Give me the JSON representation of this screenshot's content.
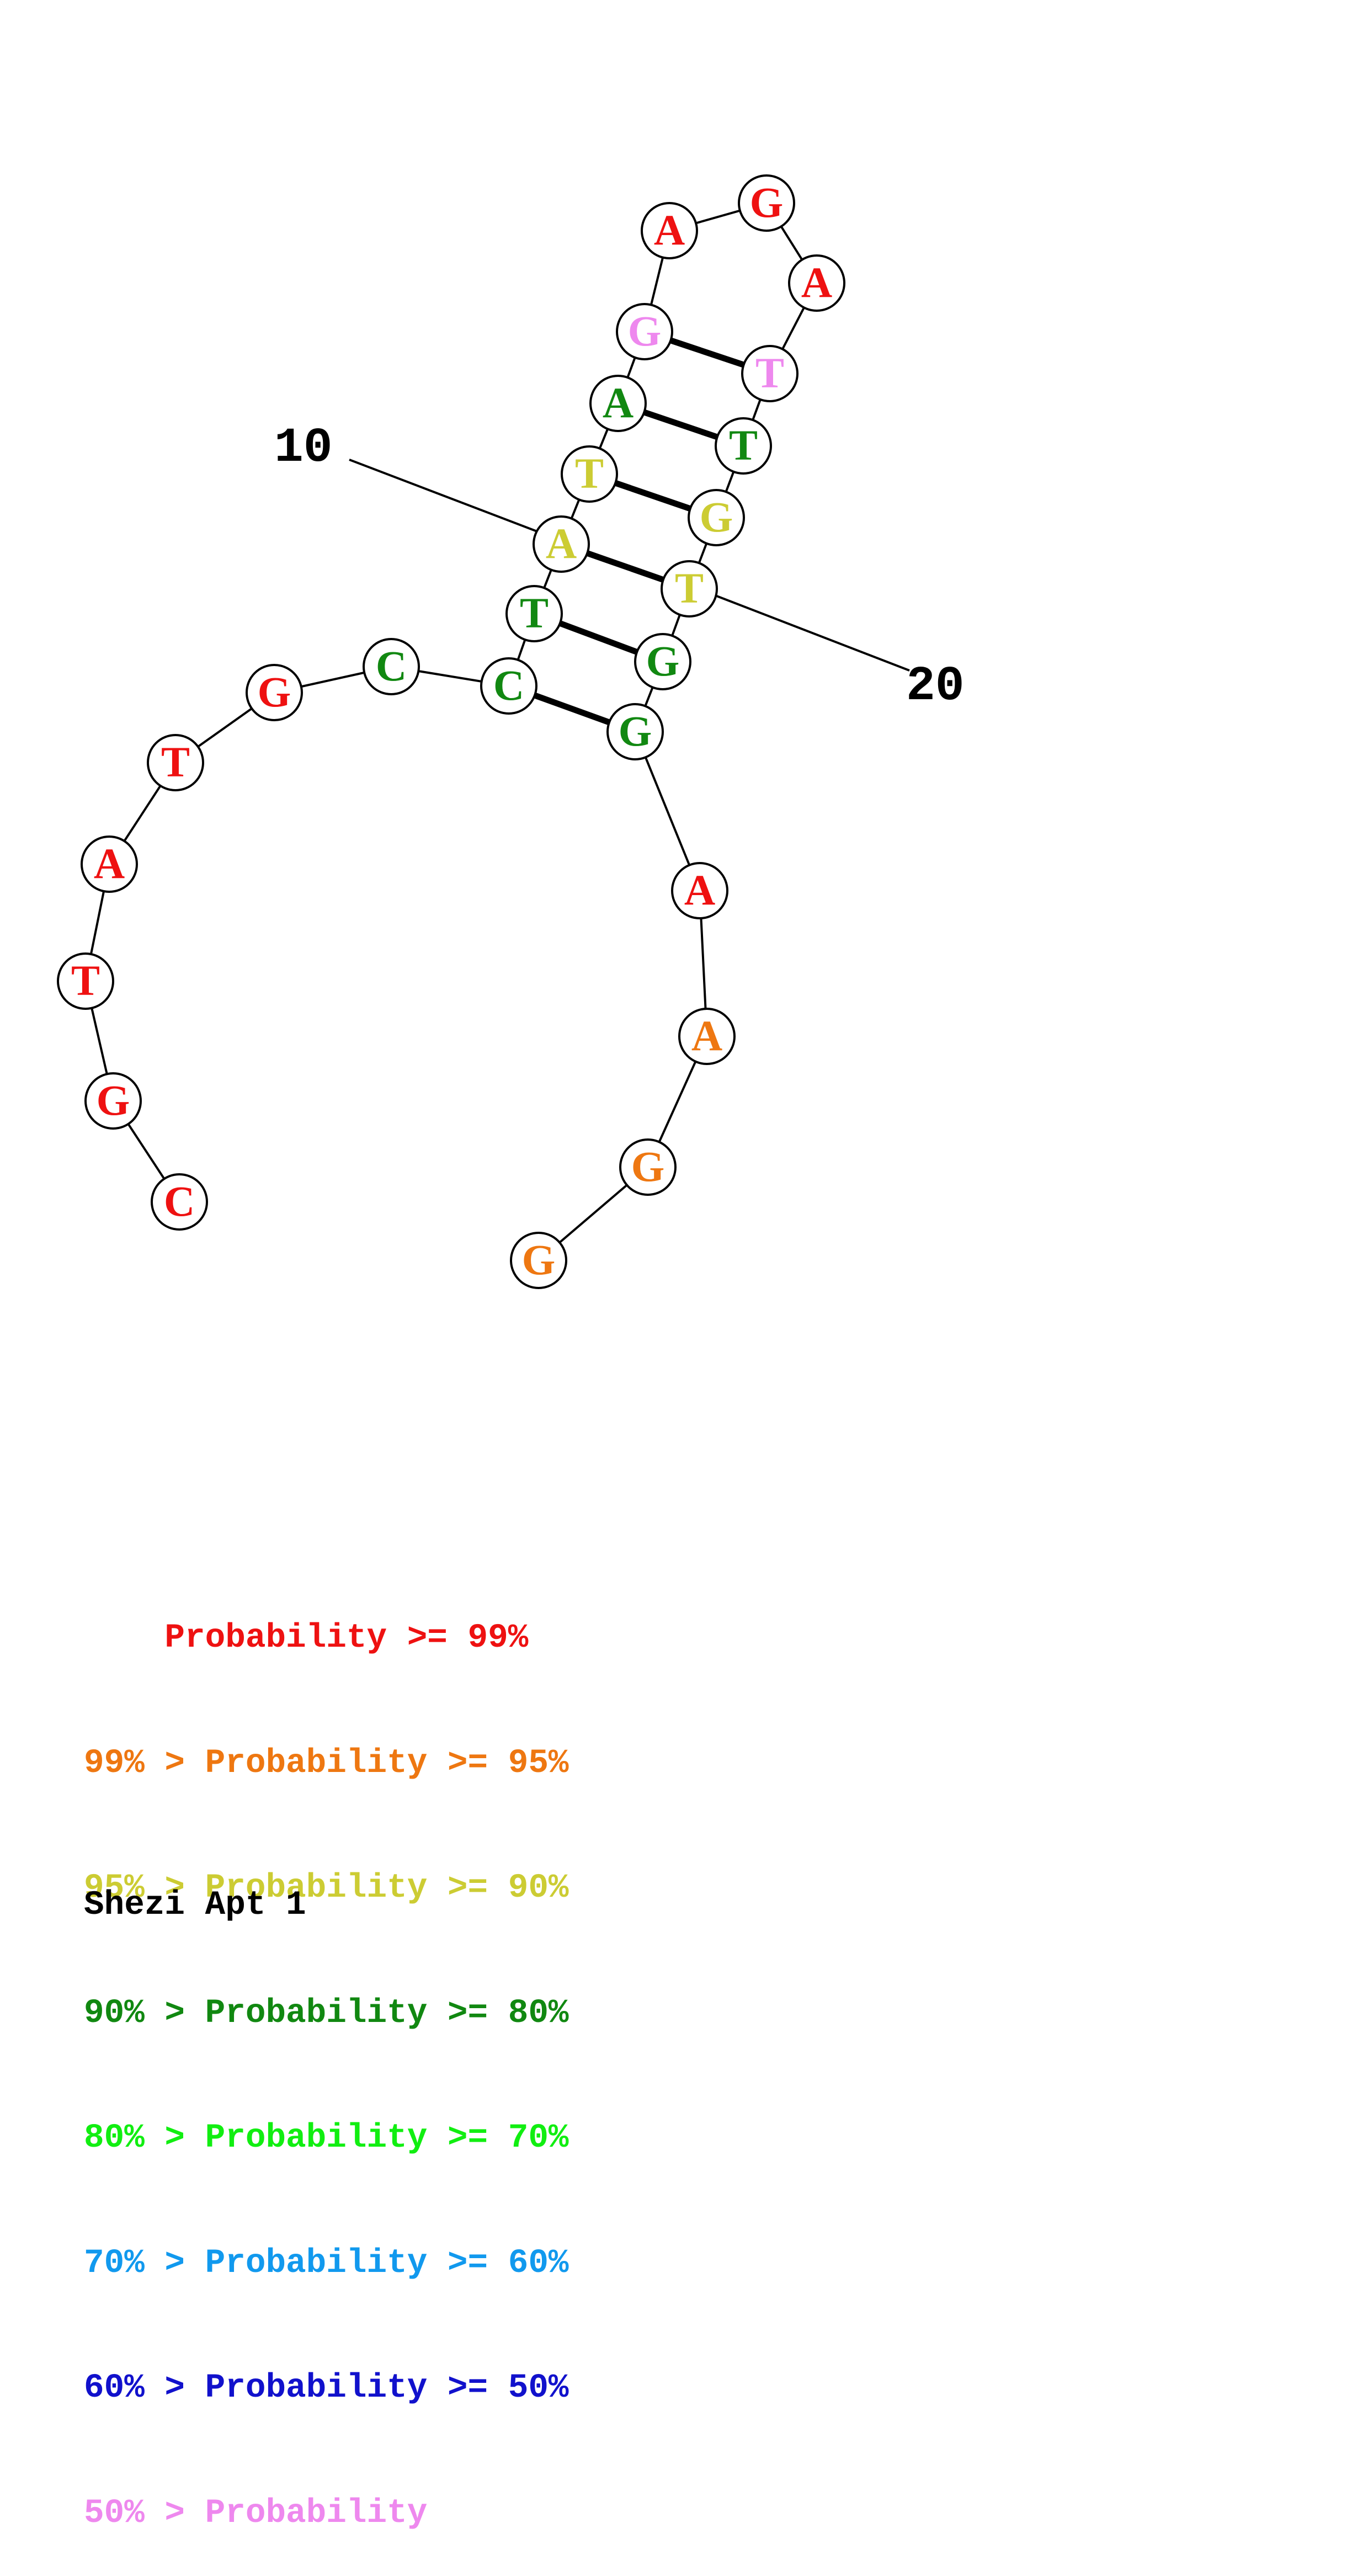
{
  "diagram": {
    "nucleotides": [
      {
        "index": 1,
        "base": "C",
        "color": "#ee1111"
      },
      {
        "index": 2,
        "base": "G",
        "color": "#ee1111"
      },
      {
        "index": 3,
        "base": "T",
        "color": "#ee1111"
      },
      {
        "index": 4,
        "base": "A",
        "color": "#ee1111"
      },
      {
        "index": 5,
        "base": "T",
        "color": "#ee1111"
      },
      {
        "index": 6,
        "base": "G",
        "color": "#ee1111"
      },
      {
        "index": 7,
        "base": "C",
        "color": "#118811"
      },
      {
        "index": 8,
        "base": "C",
        "color": "#118811"
      },
      {
        "index": 9,
        "base": "T",
        "color": "#118811"
      },
      {
        "index": 10,
        "base": "A",
        "color": "#cccc33"
      },
      {
        "index": 11,
        "base": "T",
        "color": "#cccc33"
      },
      {
        "index": 12,
        "base": "A",
        "color": "#118811"
      },
      {
        "index": 13,
        "base": "G",
        "color": "#ee88ee"
      },
      {
        "index": 14,
        "base": "A",
        "color": "#ee1111"
      },
      {
        "index": 15,
        "base": "G",
        "color": "#ee1111"
      },
      {
        "index": 16,
        "base": "A",
        "color": "#ee1111"
      },
      {
        "index": 17,
        "base": "T",
        "color": "#ee88ee"
      },
      {
        "index": 18,
        "base": "T",
        "color": "#118811"
      },
      {
        "index": 19,
        "base": "G",
        "color": "#cccc33"
      },
      {
        "index": 20,
        "base": "T",
        "color": "#cccc33"
      },
      {
        "index": 21,
        "base": "G",
        "color": "#118811"
      },
      {
        "index": 22,
        "base": "G",
        "color": "#118811"
      },
      {
        "index": 23,
        "base": "A",
        "color": "#ee1111"
      },
      {
        "index": 24,
        "base": "A",
        "color": "#ee7711"
      },
      {
        "index": 25,
        "base": "G",
        "color": "#ee7711"
      },
      {
        "index": 26,
        "base": "G",
        "color": "#ee7711"
      }
    ],
    "base_pairs": [
      [
        8,
        22
      ],
      [
        9,
        21
      ],
      [
        10,
        20
      ],
      [
        11,
        19
      ],
      [
        12,
        18
      ],
      [
        13,
        17
      ]
    ],
    "position_labels": [
      "10",
      "20"
    ]
  },
  "legend": [
    {
      "text": "    Probability >= 99%",
      "color": "#ee1111"
    },
    {
      "text": "99% > Probability >= 95%",
      "color": "#ee7711"
    },
    {
      "text": "95% > Probability >= 90%",
      "color": "#cccc33"
    },
    {
      "text": "90% > Probability >= 80%",
      "color": "#118811"
    },
    {
      "text": "80% > Probability >= 70%",
      "color": "#11ee11"
    },
    {
      "text": "70% > Probability >= 60%",
      "color": "#1199ee"
    },
    {
      "text": "60% > Probability >= 50%",
      "color": "#1111cc"
    },
    {
      "text": "50% > Probability",
      "color": "#ee88ee"
    }
  ],
  "caption": "Shezi Apt 1"
}
